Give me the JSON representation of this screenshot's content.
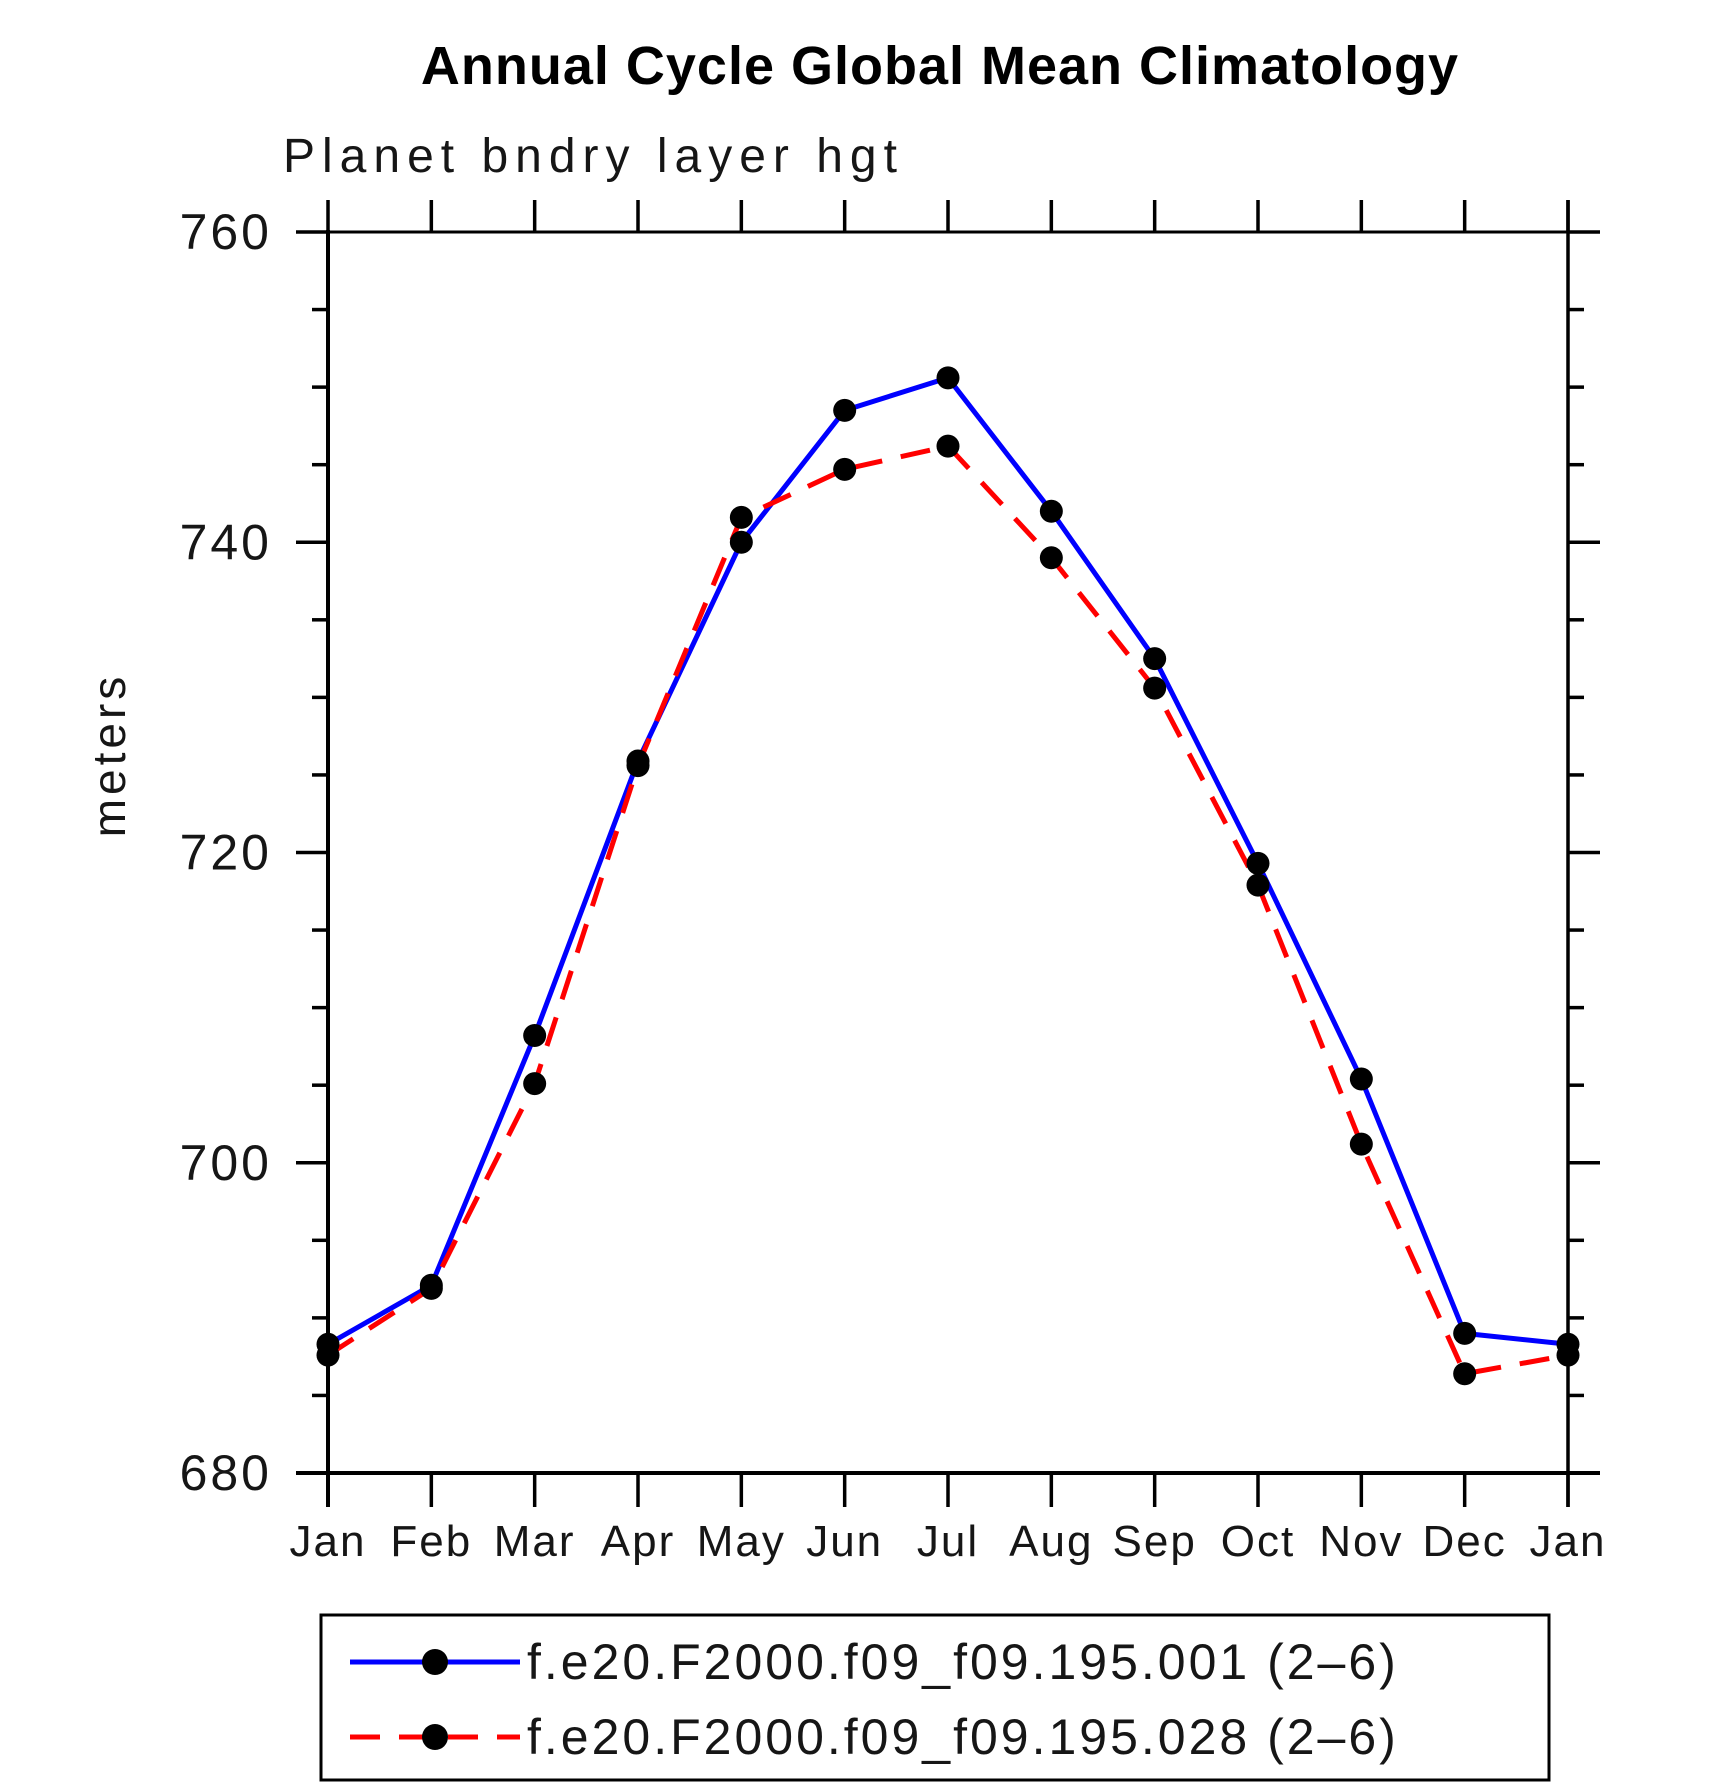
{
  "chart_data": {
    "type": "line",
    "title": "Annual Cycle Global Mean Climatology",
    "subtitle": "Planet bndry layer hgt",
    "ylabel": "meters",
    "xlabel": "",
    "ylim": [
      680,
      760
    ],
    "y_major_step": 20,
    "y_minor_step": 5,
    "grid": false,
    "legend_position": "bottom",
    "categories": [
      "Jan",
      "Feb",
      "Mar",
      "Apr",
      "May",
      "Jun",
      "Jul",
      "Aug",
      "Sep",
      "Oct",
      "Nov",
      "Dec",
      "Jan"
    ],
    "series": [
      {
        "name": "f.e20.F2000.f09_f09.195.001 (2–6)",
        "color": "#0000ff",
        "style": "solid",
        "marker": "circle",
        "marker_color": "#000000",
        "values": [
          688.3,
          692.1,
          708.2,
          725.9,
          740.0,
          748.5,
          750.6,
          742.0,
          732.5,
          719.3,
          705.4,
          689.0,
          688.3
        ]
      },
      {
        "name": "f.e20.F2000.f09_f09.195.028 (2–6)",
        "color": "#ff0000",
        "style": "dashed",
        "marker": "circle",
        "marker_color": "#000000",
        "values": [
          687.6,
          691.9,
          705.1,
          725.6,
          741.6,
          744.7,
          746.2,
          739.0,
          730.6,
          717.9,
          701.2,
          686.4,
          687.6
        ]
      }
    ]
  }
}
